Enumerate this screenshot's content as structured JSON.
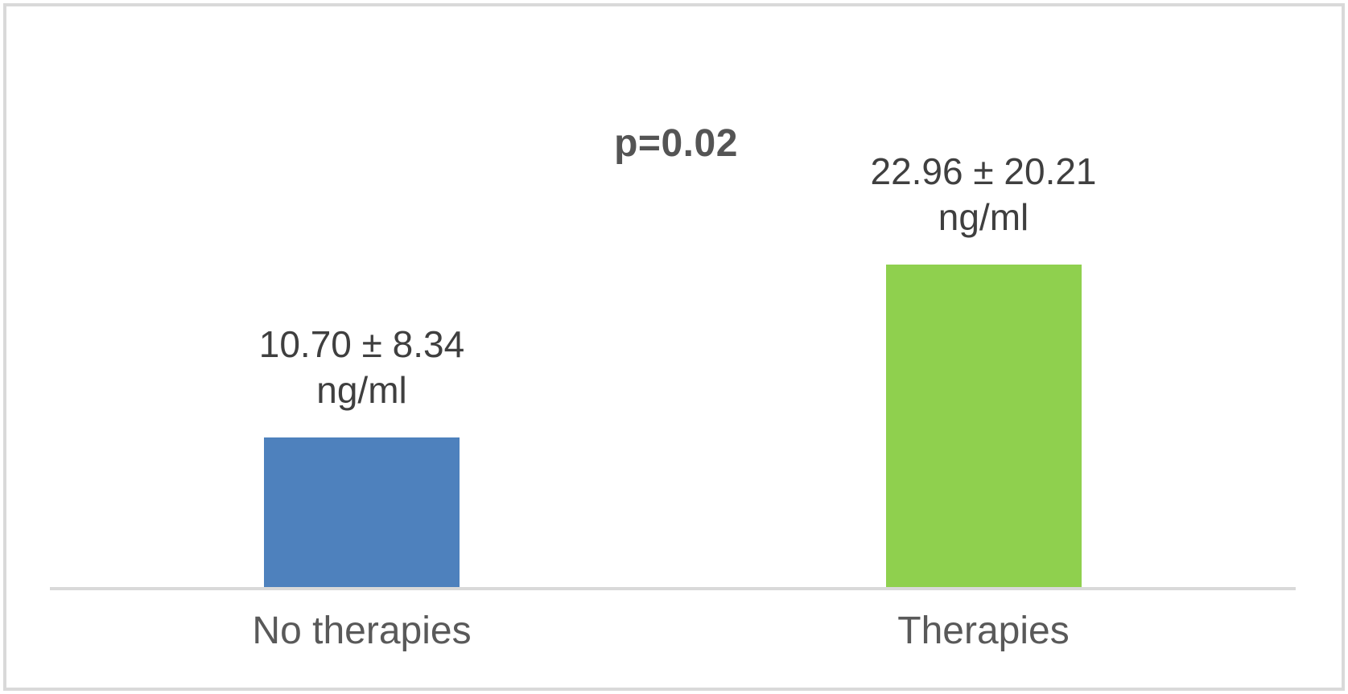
{
  "chart_data": {
    "type": "bar",
    "title": "",
    "xlabel": "",
    "ylabel": "",
    "unit": "ng/ml",
    "categories": [
      "No therapies",
      "Therapies"
    ],
    "values": [
      10.7,
      22.96
    ],
    "std_devs": [
      8.34,
      20.21
    ],
    "ylim": [
      0,
      25
    ],
    "grid": false,
    "legend": false,
    "annotation": "p=0.02",
    "bars": [
      {
        "category": "No therapies",
        "value": 10.7,
        "std_dev": 8.34,
        "label_line1": "10.70 ± 8.34",
        "label_line2": "ng/ml",
        "color": "#4e81bd"
      },
      {
        "category": "Therapies",
        "value": 22.96,
        "std_dev": 20.21,
        "label_line1": "22.96 ± 20.21",
        "label_line2": "ng/ml",
        "color": "#8fd04e"
      }
    ]
  },
  "colors": {
    "frame_border": "#d9d9d9",
    "axis_line": "#d9d9d9",
    "value_label_text": "#3f3f3f",
    "category_label_text": "#595959",
    "p_value_text": "#545454"
  }
}
